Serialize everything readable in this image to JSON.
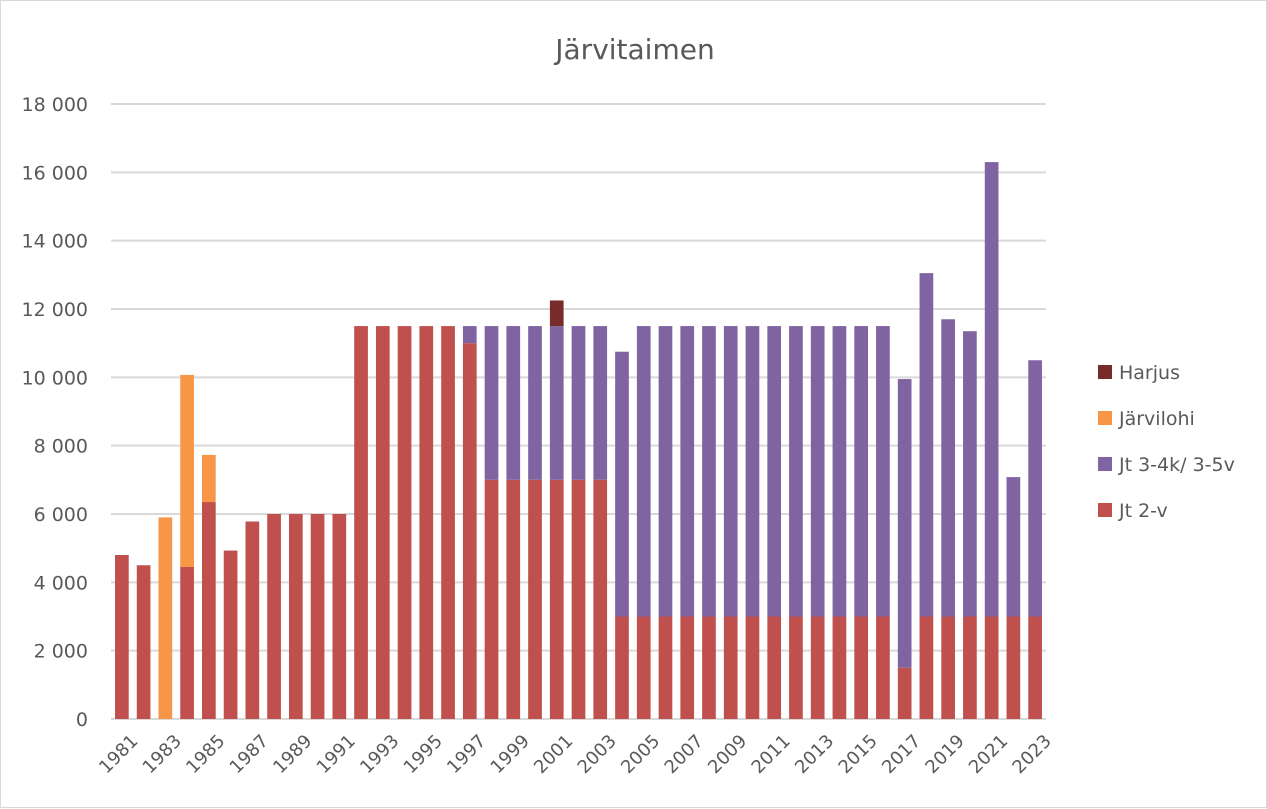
{
  "chart_data": {
    "type": "bar",
    "stacked": true,
    "title": "Järvitaimen",
    "xlabel": "",
    "ylabel": "",
    "ylim": [
      0,
      18000
    ],
    "y_ticks": [
      0,
      2000,
      4000,
      6000,
      8000,
      10000,
      12000,
      14000,
      16000,
      18000
    ],
    "y_tick_labels": [
      "0",
      "2 000",
      "4 000",
      "6 000",
      "8 000",
      "10 000",
      "12 000",
      "14 000",
      "16 000",
      "18 000"
    ],
    "grid": true,
    "legend_position": "right",
    "categories": [
      "1981",
      "1982",
      "1983",
      "1984",
      "1985",
      "1986",
      "1987",
      "1988",
      "1989",
      "1990",
      "1991",
      "1992",
      "1993",
      "1994",
      "1995",
      "1996",
      "1997",
      "1998",
      "1999",
      "2000",
      "2001",
      "2002",
      "2003",
      "2004",
      "2005",
      "2006",
      "2007",
      "2008",
      "2009",
      "2010",
      "2011",
      "2012",
      "2013",
      "2014",
      "2015",
      "2016",
      "2017",
      "2018",
      "2019",
      "2020",
      "2021",
      "2022",
      "2023"
    ],
    "x_tick_labels": [
      "1981",
      "1983",
      "1985",
      "1987",
      "1989",
      "1991",
      "1993",
      "1995",
      "1997",
      "1999",
      "2001",
      "2003",
      "2005",
      "2007",
      "2009",
      "2011",
      "2013",
      "2015",
      "2017",
      "2019",
      "2021",
      "2023"
    ],
    "series": [
      {
        "name": "Jt 2-v",
        "color": "#c0504d",
        "values": [
          4800,
          4500,
          0,
          4450,
          6350,
          4930,
          5780,
          6000,
          6000,
          6000,
          6000,
          11500,
          11500,
          11500,
          11500,
          11500,
          11000,
          7000,
          7000,
          7000,
          7000,
          7000,
          7000,
          3000,
          3000,
          3000,
          3000,
          3000,
          3000,
          3000,
          3000,
          3000,
          3000,
          3000,
          3000,
          3000,
          1500,
          3000,
          3000,
          3000,
          3000,
          3000,
          3000
        ]
      },
      {
        "name": "Jt 3-4k/ 3-5v",
        "color": "#8064a2",
        "values": [
          0,
          0,
          0,
          0,
          0,
          0,
          0,
          0,
          0,
          0,
          0,
          0,
          0,
          0,
          0,
          0,
          500,
          4500,
          4500,
          4500,
          4500,
          4500,
          4500,
          7750,
          8500,
          8500,
          8500,
          8500,
          8500,
          8500,
          8500,
          8500,
          8500,
          8500,
          8500,
          8500,
          8450,
          10050,
          8700,
          8350,
          13300,
          4080,
          7500
        ]
      },
      {
        "name": "Järvilohi",
        "color": "#f79646",
        "values": [
          0,
          0,
          5900,
          5620,
          1380,
          0,
          0,
          0,
          0,
          0,
          0,
          0,
          0,
          0,
          0,
          0,
          0,
          0,
          0,
          0,
          0,
          0,
          0,
          0,
          0,
          0,
          0,
          0,
          0,
          0,
          0,
          0,
          0,
          0,
          0,
          0,
          0,
          0,
          0,
          0,
          0,
          0,
          0
        ]
      },
      {
        "name": "Harjus",
        "color": "#772c2a",
        "values": [
          0,
          0,
          0,
          0,
          0,
          0,
          0,
          0,
          0,
          0,
          0,
          0,
          0,
          0,
          0,
          0,
          0,
          0,
          0,
          0,
          750,
          0,
          0,
          0,
          0,
          0,
          0,
          0,
          0,
          0,
          0,
          0,
          0,
          0,
          0,
          0,
          0,
          0,
          0,
          0,
          0,
          0,
          0
        ]
      }
    ],
    "legend_order": [
      "Harjus",
      "Järvilohi",
      "Jt 3-4k/ 3-5v",
      "Jt 2-v"
    ]
  }
}
